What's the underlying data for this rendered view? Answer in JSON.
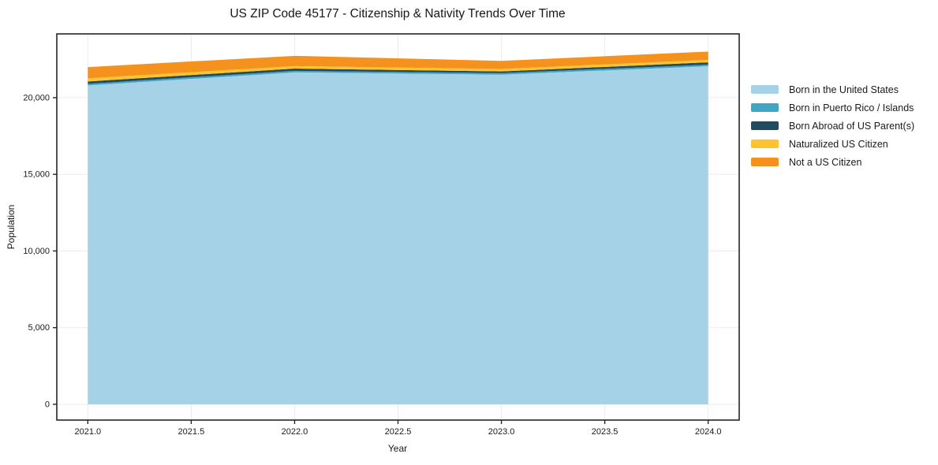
{
  "chart_data": {
    "type": "area",
    "stacked": true,
    "title": "US ZIP Code 45177 - Citizenship & Nativity Trends Over Time",
    "xlabel": "Year",
    "ylabel": "Population",
    "x": [
      2021,
      2022,
      2023,
      2024
    ],
    "series": [
      {
        "name": "Born in the United States",
        "color": "#a6d2e7",
        "values": [
          20800,
          21650,
          21500,
          22050
        ]
      },
      {
        "name": "Born in Puerto Rico / Islands",
        "color": "#43a5c4",
        "values": [
          105,
          100,
          100,
          105
        ]
      },
      {
        "name": "Born Abroad of US Parent(s)",
        "color": "#234a5d",
        "values": [
          150,
          150,
          110,
          150
        ]
      },
      {
        "name": "Naturalized US Citizen",
        "color": "#fdc42e",
        "values": [
          210,
          160,
          160,
          160
        ]
      },
      {
        "name": "Not a US Citizen",
        "color": "#f5921e",
        "values": [
          730,
          670,
          530,
          540
        ]
      }
    ],
    "xlim": [
      2020.85,
      2024.15
    ],
    "ylim": [
      -1030,
      24160
    ],
    "xticks": {
      "values": [
        2021.0,
        2021.5,
        2022.0,
        2022.5,
        2023.0,
        2023.5,
        2024.0
      ],
      "labels": [
        "2021.0",
        "2021.5",
        "2022.0",
        "2022.5",
        "2023.0",
        "2023.5",
        "2024.0"
      ]
    },
    "yticks": {
      "values": [
        0,
        5000,
        10000,
        15000,
        20000
      ],
      "labels": [
        "0",
        "5,000",
        "10,000",
        "15,000",
        "20,000"
      ]
    },
    "grid": true,
    "legend": {
      "position": "right",
      "frame": false
    },
    "colors": {
      "frame": "#262626",
      "grid": "#ebebeb",
      "text": "#1a1a1a",
      "background": "#ffffff"
    }
  }
}
